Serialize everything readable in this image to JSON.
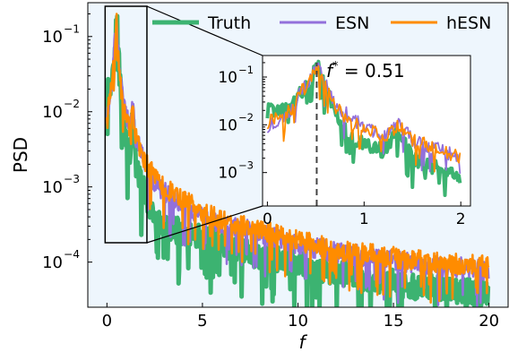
{
  "chart_data": [
    {
      "type": "line",
      "title": "",
      "xlabel": "f",
      "ylabel": "PSD",
      "xlim": [
        -1,
        21
      ],
      "ylim_log10": [
        -4.6,
        -0.55
      ],
      "yscale": "log",
      "xticks": [
        0,
        5,
        10,
        15,
        20
      ],
      "xtick_labels": [
        "0",
        "5",
        "10",
        "15",
        "20"
      ],
      "yticks": [
        0.0001,
        0.001,
        0.01,
        0.1
      ],
      "ytick_labels": [
        "10",
        "10",
        "10",
        "10"
      ],
      "ytick_exponents": [
        "−4",
        "−3",
        "−2",
        "−1"
      ],
      "legend": {
        "placement": "top-right"
      },
      "plot_background": "#eef6fd",
      "series": [
        {
          "name": "Truth",
          "color": "#3cb371",
          "x": [
            0,
            0.25,
            0.35,
            0.45,
            0.51,
            0.6,
            0.7,
            0.85,
            1.0,
            1.2,
            1.35,
            1.5,
            1.8,
            2.0,
            2.2,
            2.5,
            3.0,
            3.5,
            4.0,
            5.0,
            6.0,
            7.0,
            8.0,
            10.0,
            12.0,
            14.0,
            16.0,
            18.0,
            20.0
          ],
          "y": [
            0.02,
            0.025,
            0.05,
            0.08,
            0.2,
            0.06,
            0.02,
            0.006,
            0.004,
            0.003,
            0.008,
            0.002,
            0.0012,
            0.0008,
            0.0006,
            0.0004,
            0.0003,
            0.00028,
            0.00026,
            0.00022,
            0.00018,
            0.00015,
            0.00012,
            0.0001,
            7.5e-05,
            6e-05,
            5e-05,
            4.5e-05,
            4e-05
          ]
        },
        {
          "name": "ESN",
          "color": "#9370db",
          "x": [
            0,
            0.25,
            0.35,
            0.45,
            0.51,
            0.6,
            0.7,
            0.85,
            1.0,
            1.2,
            1.35,
            1.5,
            1.8,
            2.0,
            2.5,
            3.0,
            4.0,
            5.0,
            6.0,
            8.0,
            10.0,
            12.0,
            14.0,
            16.0,
            18.0,
            20.0
          ],
          "y": [
            0.01,
            0.02,
            0.06,
            0.1,
            0.18,
            0.07,
            0.03,
            0.015,
            0.01,
            0.006,
            0.012,
            0.005,
            0.003,
            0.002,
            0.0012,
            0.0009,
            0.0006,
            0.0004,
            0.00033,
            0.00025,
            0.00018,
            0.00014,
            0.00012,
            0.0001,
            9e-05,
            8e-05
          ]
        },
        {
          "name": "hESN",
          "color": "#ff8c00",
          "x": [
            0,
            0.25,
            0.35,
            0.45,
            0.51,
            0.6,
            0.7,
            0.85,
            1.0,
            1.2,
            1.35,
            1.5,
            1.8,
            2.0,
            2.5,
            3.0,
            4.0,
            5.0,
            6.0,
            8.0,
            10.0,
            12.0,
            14.0,
            16.0,
            18.0,
            20.0
          ],
          "y": [
            0.012,
            0.02,
            0.05,
            0.09,
            0.16,
            0.06,
            0.025,
            0.012,
            0.009,
            0.006,
            0.01,
            0.005,
            0.003,
            0.0022,
            0.0014,
            0.001,
            0.0007,
            0.00048,
            0.00038,
            0.00028,
            0.0002,
            0.00015,
            0.00013,
            0.00011,
            0.0001,
            9e-05
          ]
        }
      ]
    },
    {
      "type": "line",
      "role": "inset",
      "title": "",
      "xlim": [
        -0.05,
        2.1
      ],
      "ylim_log10": [
        -3.7,
        -0.55
      ],
      "yscale": "log",
      "xticks": [
        0,
        1,
        2
      ],
      "xtick_labels": [
        "0",
        "1",
        "2"
      ],
      "yticks": [
        0.001,
        0.01,
        0.1
      ],
      "ytick_labels": [
        "10",
        "10",
        "10"
      ],
      "ytick_exponents": [
        "−3",
        "−2",
        "−1"
      ],
      "zoom_region": {
        "x": [
          0,
          2
        ]
      },
      "annotation": {
        "x": 0.51,
        "label_base": "f",
        "label_sup": "*",
        "label_rest": " = 0.51",
        "line_style": "dashed",
        "color": "#444444"
      }
    }
  ]
}
